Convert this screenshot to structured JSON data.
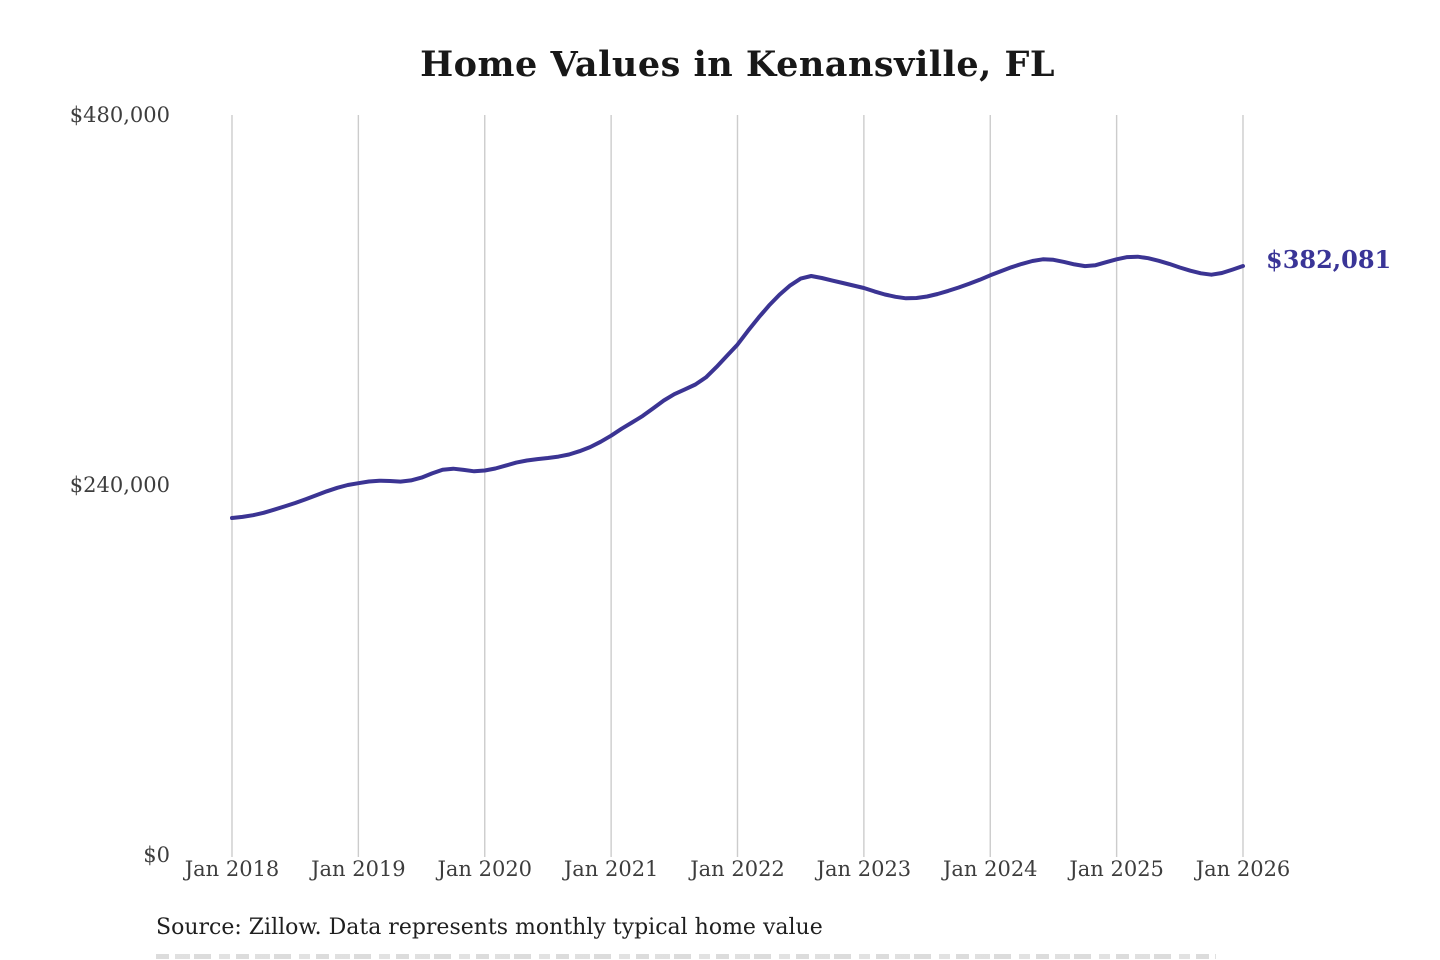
{
  "title": "Home Values in Kenansville, FL",
  "source_note": "Source: Zillow. Data represents monthly typical home value",
  "annotation": {
    "label": "$382,081",
    "color": "#3a3597"
  },
  "colors": {
    "line": "#3b3493",
    "gridline": "#cccccc",
    "title_text": "#181818",
    "axis_text": "#3d3d3d"
  },
  "chart_data": {
    "type": "line",
    "title": "Home Values in Kenansville, FL",
    "xlabel": "",
    "ylabel": "",
    "x_interval": "monthly",
    "x_start": "Jan 2018",
    "x_end": "Jan 2026",
    "x_tick_labels": [
      "Jan 2018",
      "Jan 2019",
      "Jan 2020",
      "Jan 2021",
      "Jan 2022",
      "Jan 2023",
      "Jan 2024",
      "Jan 2025",
      "Jan 2026"
    ],
    "y_tick_labels": [
      "$480,000",
      "$240,000",
      "$0"
    ],
    "y_ticks": [
      480000,
      240000,
      0
    ],
    "ylim": [
      0,
      480000
    ],
    "grid": "vertical-only",
    "legend": "none",
    "line_color": "#3b3493",
    "gridline_color": "#cccccc",
    "last_value": 382081,
    "last_value_label": "$382,081",
    "series": [
      {
        "name": "Typical home value",
        "values": [
          218600,
          219300,
          220400,
          222000,
          224000,
          226100,
          228300,
          230700,
          233300,
          235900,
          238200,
          240000,
          241200,
          242300,
          242800,
          242600,
          242200,
          243000,
          244800,
          247500,
          249900,
          250600,
          249800,
          248900,
          249400,
          250700,
          252600,
          254500,
          255900,
          256800,
          257500,
          258400,
          259800,
          261900,
          264600,
          268000,
          272000,
          276500,
          280600,
          284800,
          289800,
          294800,
          298900,
          302000,
          305200,
          309800,
          316500,
          323800,
          331100,
          340000,
          348600,
          356500,
          363500,
          369500,
          373900,
          375600,
          374300,
          372600,
          371000,
          369400,
          367800,
          365600,
          363600,
          362100,
          361100,
          361300,
          362300,
          363900,
          365900,
          368100,
          370500,
          373100,
          376000,
          378700,
          381200,
          383400,
          385300,
          386400,
          386100,
          384700,
          383100,
          382000,
          382600,
          384500,
          386400,
          387800,
          388100,
          387100,
          385400,
          383400,
          381100,
          379000,
          377300,
          376400,
          377500,
          379700,
          382081
        ]
      }
    ]
  }
}
